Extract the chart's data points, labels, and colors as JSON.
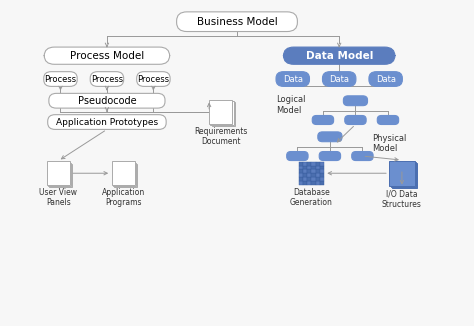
{
  "bg": "#f7f7f7",
  "white": "#ffffff",
  "blue": "#5b7dbe",
  "blue2": "#6b8fcf",
  "gray_border": "#aaaaaa",
  "gray_line": "#999999",
  "dark_text": "#333333",
  "xlim": [
    0,
    10
  ],
  "ylim": [
    0,
    7.8
  ],
  "figsize": [
    4.74,
    3.26
  ],
  "dpi": 100
}
